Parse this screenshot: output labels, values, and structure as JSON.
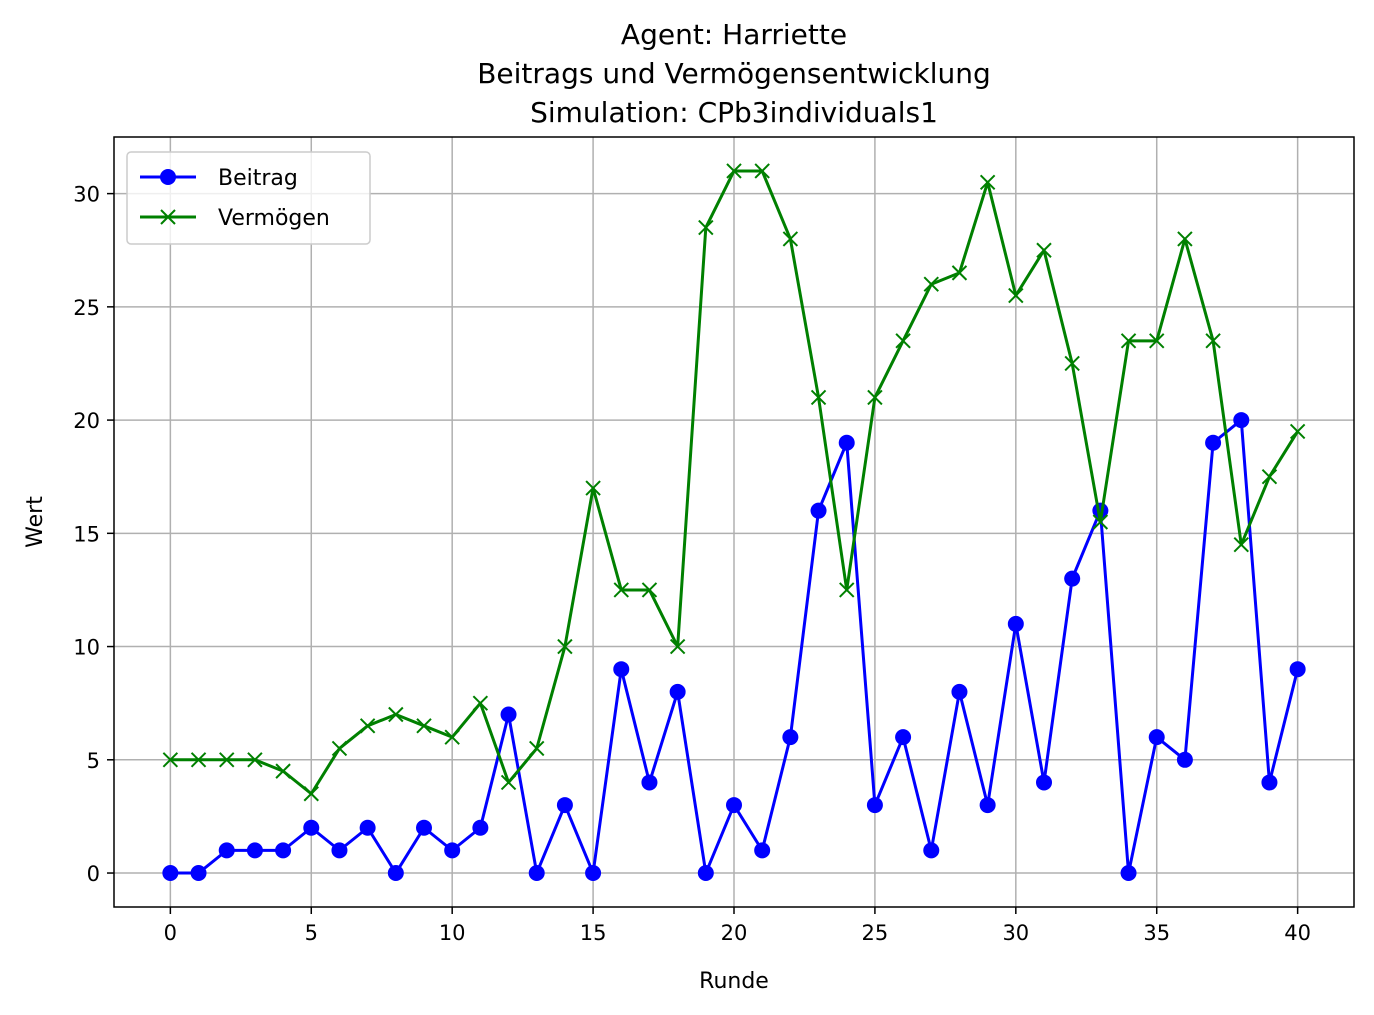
{
  "chart_data": {
    "type": "line",
    "title": [
      "Agent: Harriette",
      "Beitrags und Vermögensentwicklung",
      "Simulation: CPb3individuals1"
    ],
    "xlabel": "Runde",
    "ylabel": "Wert",
    "xlim": [
      -2,
      42
    ],
    "ylim": [
      -1.5,
      32.5
    ],
    "xticks": [
      0,
      5,
      10,
      15,
      20,
      25,
      30,
      35,
      40
    ],
    "yticks": [
      0,
      5,
      10,
      15,
      20,
      25,
      30
    ],
    "grid": true,
    "legend_position": "top-left",
    "x": [
      0,
      1,
      2,
      3,
      4,
      5,
      6,
      7,
      8,
      9,
      10,
      11,
      12,
      13,
      14,
      15,
      16,
      17,
      18,
      19,
      20,
      21,
      22,
      23,
      24,
      25,
      26,
      27,
      28,
      29,
      30,
      31,
      32,
      33,
      34,
      35,
      36,
      37,
      38,
      39,
      40
    ],
    "series": [
      {
        "name": "Beitrag",
        "color": "#0000ff",
        "marker": "circle",
        "values": [
          0,
          0,
          1,
          1,
          1,
          2,
          1,
          2,
          0,
          2,
          1,
          2,
          7,
          0,
          3,
          0,
          9,
          4,
          8,
          0,
          3,
          1,
          6,
          16,
          19,
          3,
          6,
          1,
          8,
          3,
          11,
          4,
          13,
          16,
          0,
          6,
          5,
          19,
          20,
          4,
          9
        ]
      },
      {
        "name": "Vermögen",
        "color": "#008000",
        "marker": "x",
        "values": [
          5,
          5,
          5,
          5,
          4.5,
          3.5,
          5.5,
          6.5,
          7,
          6.5,
          6,
          7.5,
          4,
          5.5,
          10,
          17,
          12.5,
          12.5,
          10,
          28.5,
          31,
          31,
          28,
          21,
          12.5,
          21,
          23.5,
          26,
          26.5,
          30.5,
          25.5,
          27.5,
          22.5,
          15.5,
          23.5,
          23.5,
          28,
          23.5,
          14.5,
          17.5,
          19.5
        ]
      }
    ]
  }
}
